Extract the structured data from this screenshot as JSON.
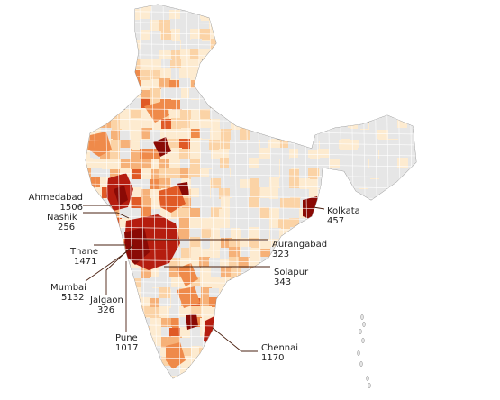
{
  "caption": "",
  "palette": {
    "no_cases": "#e6e6e6",
    "very_low": "#fdebd0",
    "low": "#fbd3a6",
    "medium_low": "#f6b178",
    "medium": "#ef8a4a",
    "high": "#e05a26",
    "very_high": "#b51d0f",
    "extreme": "#8a0a05",
    "district_border": "#ffffff",
    "outline": "#8c8c8c",
    "leader_line": "#4a2010",
    "label_text": "#222222"
  },
  "callouts": [
    {
      "city": "Ahmedabad",
      "cases": "1506"
    },
    {
      "city": "Nashik",
      "cases": "256"
    },
    {
      "city": "Thane",
      "cases": "1471"
    },
    {
      "city": "Mumbai",
      "cases": "5132"
    },
    {
      "city": "Jalgaon",
      "cases": "326"
    },
    {
      "city": "Pune",
      "cases": "1017"
    },
    {
      "city": "Chennai",
      "cases": "1170"
    },
    {
      "city": "Aurangabad",
      "cases": "323"
    },
    {
      "city": "Solapur",
      "cases": "343"
    },
    {
      "city": "Kolkata",
      "cases": "457"
    }
  ]
}
